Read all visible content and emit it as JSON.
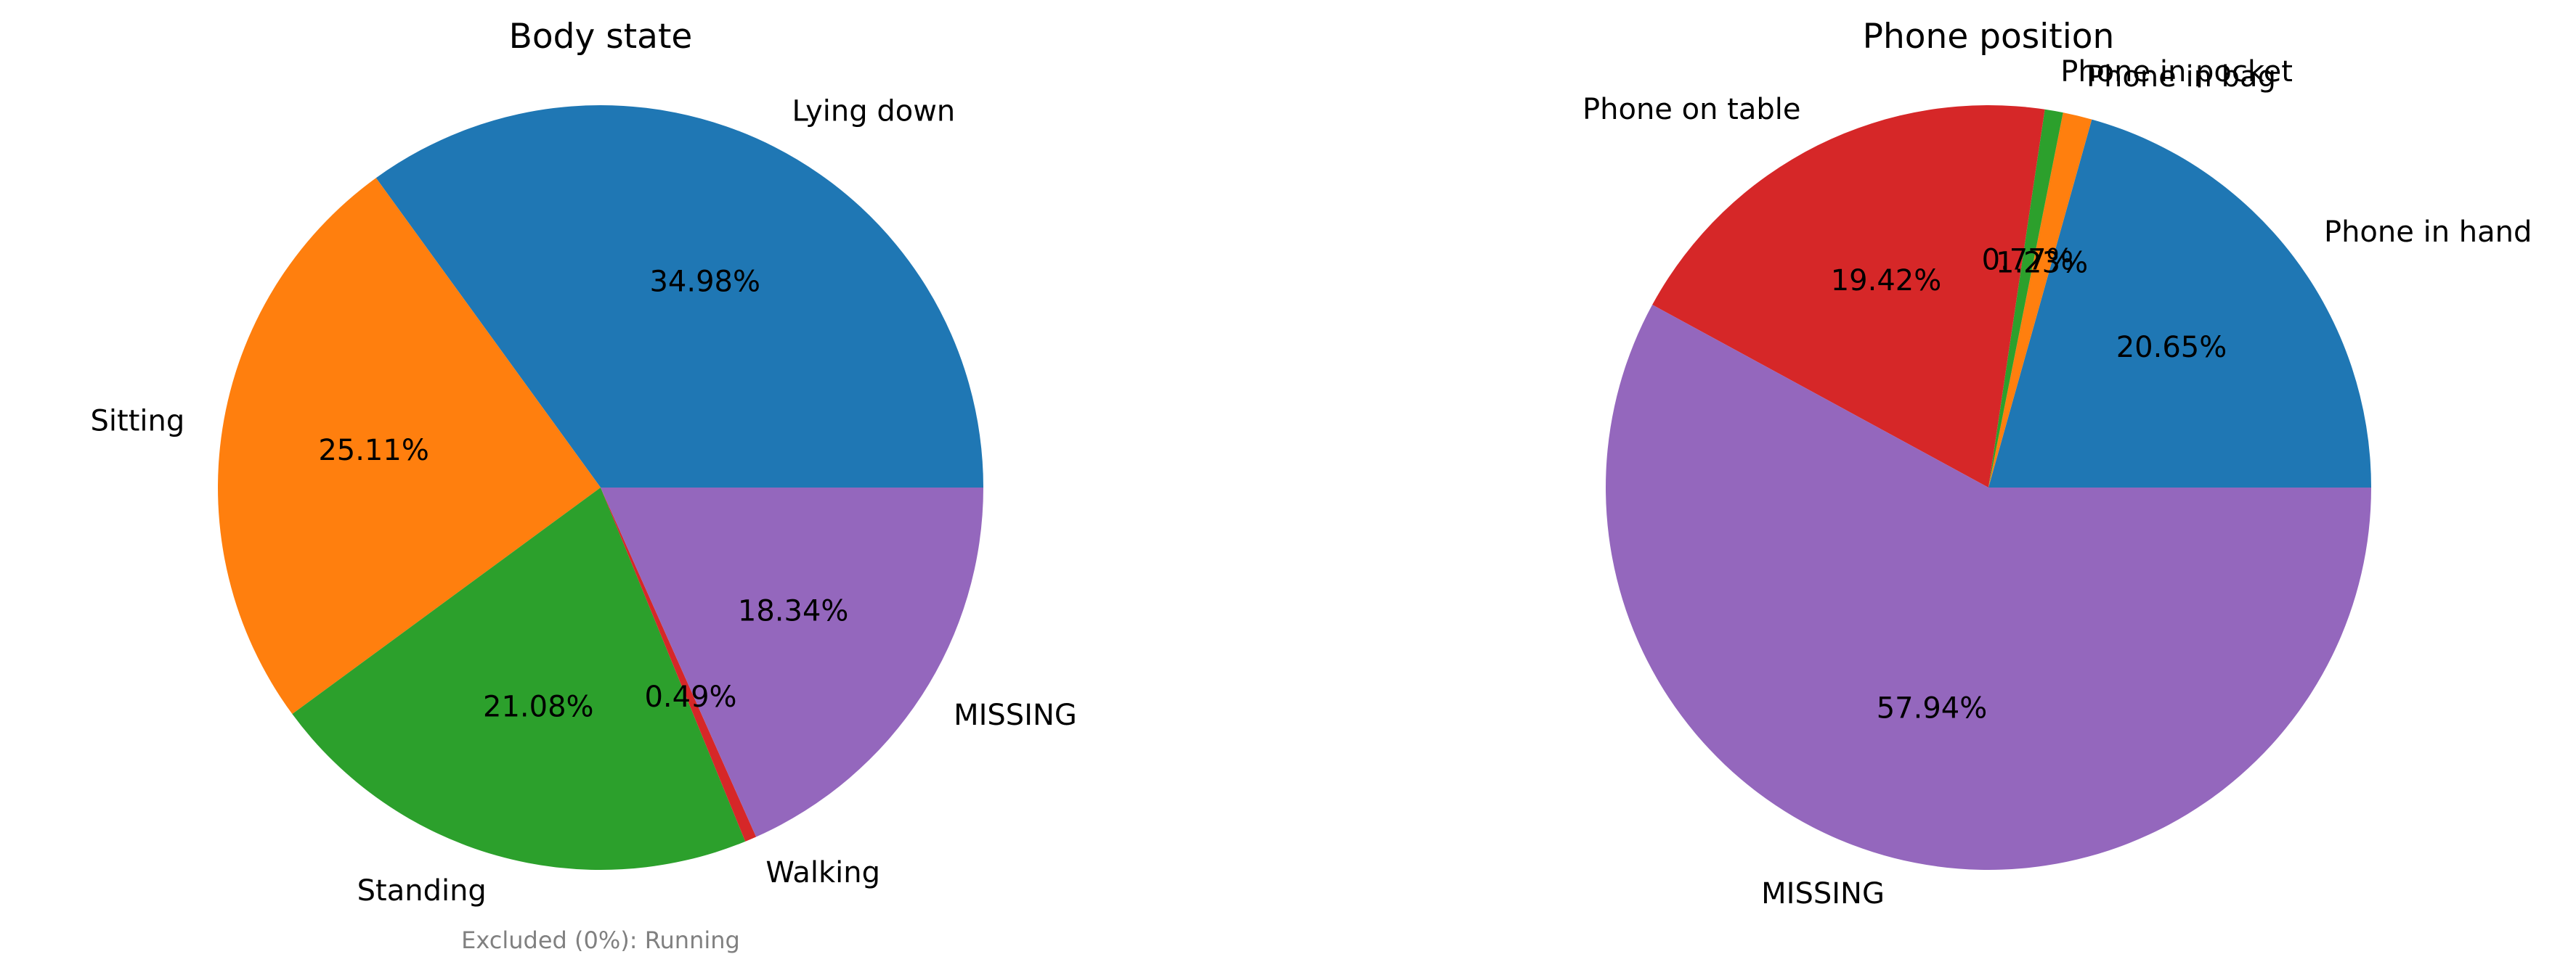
{
  "chart_data": [
    {
      "type": "pie",
      "title": "Body state",
      "labels": [
        "Lying down",
        "Sitting",
        "Standing",
        "Walking",
        "MISSING"
      ],
      "values": [
        34.98,
        25.11,
        21.08,
        0.49,
        18.34
      ],
      "pct_labels": [
        "34.98%",
        "25.11%",
        "21.08%",
        "0.49%",
        "18.34%"
      ],
      "colors": [
        "#1f77b4",
        "#ff7f0e",
        "#2ca02c",
        "#d62728",
        "#9467bd"
      ],
      "start_angle_deg": 0,
      "direction": "counterclockwise",
      "note": "Excluded (0%): Running"
    },
    {
      "type": "pie",
      "title": "Phone position",
      "labels": [
        "Phone in hand",
        "Phone in bag",
        "Phone in pocket",
        "Phone on table",
        "MISSING"
      ],
      "values": [
        20.65,
        1.23,
        0.77,
        19.42,
        57.94
      ],
      "pct_labels": [
        "20.65%",
        "1.23%",
        "0.77%",
        "19.42%",
        "57.94%"
      ],
      "colors": [
        "#1f77b4",
        "#ff7f0e",
        "#2ca02c",
        "#d62728",
        "#9467bd"
      ],
      "start_angle_deg": 0,
      "direction": "counterclockwise"
    }
  ]
}
